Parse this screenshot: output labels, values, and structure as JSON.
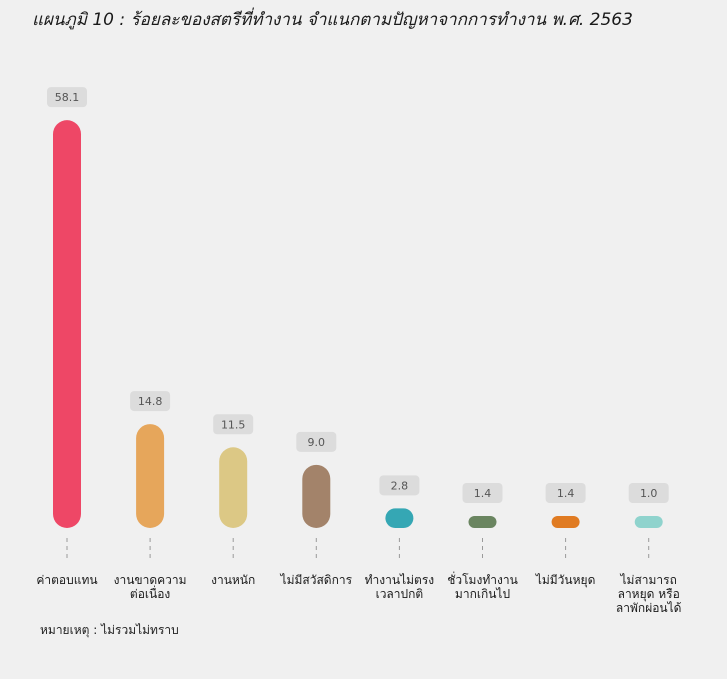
{
  "title": "แผนภูมิ 10 : ร้อยละของสตรีที่ทำงาน จำแนกตามปัญหาจากการทำงาน พ.ศ. 2563",
  "note": "หมายเหตุ : ไม่รวมไม่ทราบ",
  "chart_data": {
    "type": "bar",
    "title": "แผนภูมิ 10 : ร้อยละของสตรีที่ทำงาน จำแนกตามปัญหาจากการทำงาน พ.ศ. 2563",
    "categories": [
      [
        "ค่าตอบแทน"
      ],
      [
        "งานขาดความ",
        "ต่อเนื่อง"
      ],
      [
        "งานหนัก"
      ],
      [
        "ไม่มีสวัสดิการ"
      ],
      [
        "ทำงานไม่ตรง",
        "เวลาปกติ"
      ],
      [
        "ชั่วโมงทำงาน",
        "มากเกินไป"
      ],
      [
        "ไม่มีวันหยุด"
      ],
      [
        "ไม่สามารถ",
        "ลาหยุด หรือ",
        "ลาพักผ่อนได้"
      ]
    ],
    "values": [
      58.1,
      14.8,
      11.5,
      9.0,
      2.8,
      1.4,
      1.4,
      1.0
    ],
    "value_labels": [
      "58.1",
      "14.8",
      "11.5",
      "9.0",
      "2.8",
      "1.4",
      "1.4",
      "1.0"
    ],
    "colors": [
      "#ee4766",
      "#e6a65b",
      "#dcc885",
      "#a3836a",
      "#35a7b4",
      "#6a8560",
      "#e07b22",
      "#8fd3cd"
    ],
    "xlabel": "",
    "ylabel": "",
    "ylim": [
      0,
      60
    ],
    "grid": false,
    "legend": "none"
  }
}
